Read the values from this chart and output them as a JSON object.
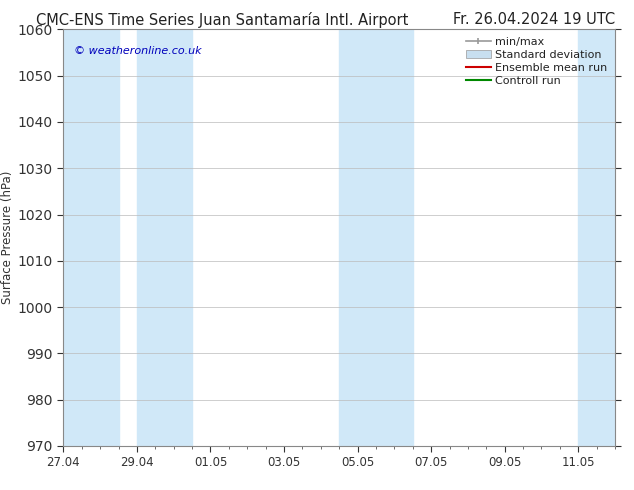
{
  "title_left": "CMC-ENS Time Series Juan Santamaría Intl. Airport",
  "title_right": "Fr. 26.04.2024 19 UTC",
  "ylabel": "Surface Pressure (hPa)",
  "ylim": [
    970,
    1060
  ],
  "yticks": [
    970,
    980,
    990,
    1000,
    1010,
    1020,
    1030,
    1040,
    1050,
    1060
  ],
  "xtick_labels": [
    "27.04",
    "29.04",
    "01.05",
    "03.05",
    "05.05",
    "07.05",
    "09.05",
    "11.05"
  ],
  "watermark": "© weatheronline.co.uk",
  "watermark_color": "#0000bb",
  "background_color": "#ffffff",
  "plot_bg_color": "#ffffff",
  "band_color": "#d0e8f8",
  "grid_color": "#bbbbbb",
  "title_fontsize": 10.5,
  "axis_fontsize": 8.5,
  "tick_fontsize": 8.5,
  "legend_fontsize": 8
}
